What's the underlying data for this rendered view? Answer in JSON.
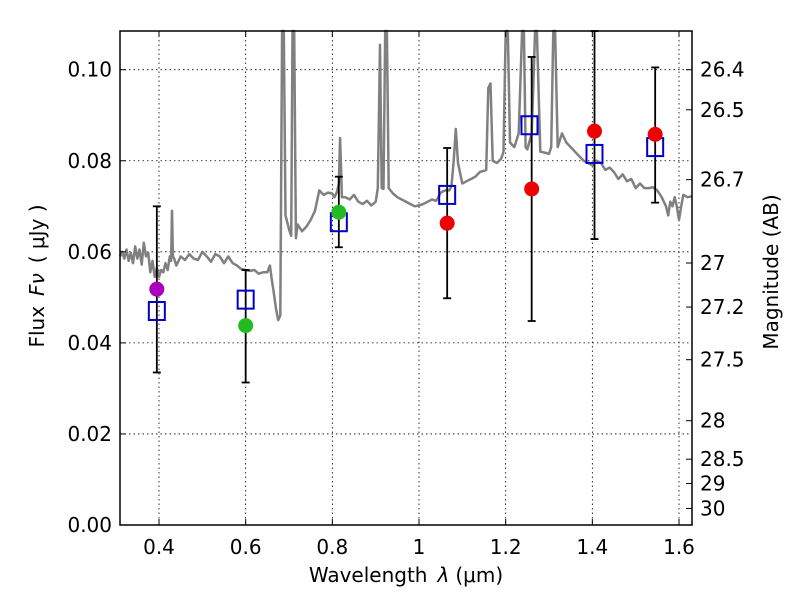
{
  "chart_data": {
    "type": "scatter",
    "xlabel": "Wavelength",
    "xlabel_symbol": "λ",
    "xlabel_unit": "(μm)",
    "ylabel": "Flux",
    "ylabel_symbol": "Fν",
    "ylabel_unit": "( μJy )",
    "y2label": "Magnitude (AB)",
    "xlim": [
      0.31,
      1.63
    ],
    "ylim": [
      0.0,
      0.1085
    ],
    "grid": true,
    "x_ticks": [
      {
        "value": 0.4,
        "label": "0.4"
      },
      {
        "value": 0.6,
        "label": "0.6"
      },
      {
        "value": 0.8,
        "label": "0.8"
      },
      {
        "value": 1.0,
        "label": "1"
      },
      {
        "value": 1.2,
        "label": "1.2"
      },
      {
        "value": 1.4,
        "label": "1.4"
      },
      {
        "value": 1.6,
        "label": "1.6"
      }
    ],
    "y_ticks": [
      {
        "value": 0.0,
        "label": "0.00"
      },
      {
        "value": 0.02,
        "label": "0.02"
      },
      {
        "value": 0.04,
        "label": "0.04"
      },
      {
        "value": 0.06,
        "label": "0.06"
      },
      {
        "value": 0.08,
        "label": "0.08"
      },
      {
        "value": 0.1,
        "label": "0.10"
      }
    ],
    "y2_ticks": [
      {
        "mag": 26.4,
        "label": "26.4"
      },
      {
        "mag": 26.5,
        "label": "26.5"
      },
      {
        "mag": 26.7,
        "label": "26.7"
      },
      {
        "mag": 27.0,
        "label": "27"
      },
      {
        "mag": 27.2,
        "label": "27.2"
      },
      {
        "mag": 27.5,
        "label": "27.5"
      },
      {
        "mag": 28.0,
        "label": "28"
      },
      {
        "mag": 28.5,
        "label": "28.5"
      },
      {
        "mag": 29.0,
        "label": "29"
      },
      {
        "mag": 30.0,
        "label": "30"
      }
    ],
    "observed": [
      {
        "x": 0.395,
        "y": 0.0518,
        "yerr_low": 0.0335,
        "yerr_high": 0.07,
        "color": "#aa00bb"
      },
      {
        "x": 0.6,
        "y": 0.0438,
        "yerr_low": 0.0313,
        "yerr_high": 0.056,
        "color": "#22bb22"
      },
      {
        "x": 0.815,
        "y": 0.0687,
        "yerr_low": 0.061,
        "yerr_high": 0.0765,
        "color": "#22bb22"
      },
      {
        "x": 1.065,
        "y": 0.0663,
        "yerr_low": 0.0498,
        "yerr_high": 0.0828,
        "color": "#ee0000"
      },
      {
        "x": 1.26,
        "y": 0.0738,
        "yerr_low": 0.0448,
        "yerr_high": 0.1028,
        "color": "#ee0000"
      },
      {
        "x": 1.405,
        "y": 0.0865,
        "yerr_low": 0.0628,
        "yerr_high": 0.1085,
        "color": "#ee0000"
      },
      {
        "x": 1.545,
        "y": 0.0858,
        "yerr_low": 0.0708,
        "yerr_high": 0.1005,
        "color": "#ee0000"
      }
    ],
    "model_photometry": [
      {
        "x": 0.395,
        "y": 0.047
      },
      {
        "x": 0.6,
        "y": 0.0495
      },
      {
        "x": 0.815,
        "y": 0.0665
      },
      {
        "x": 1.065,
        "y": 0.0725
      },
      {
        "x": 1.255,
        "y": 0.0878
      },
      {
        "x": 1.405,
        "y": 0.0815
      },
      {
        "x": 1.545,
        "y": 0.083
      }
    ],
    "spectrum": [
      [
        0.31,
        0.059
      ],
      [
        0.315,
        0.06
      ],
      [
        0.32,
        0.0585
      ],
      [
        0.325,
        0.0605
      ],
      [
        0.33,
        0.058
      ],
      [
        0.335,
        0.0598
      ],
      [
        0.34,
        0.0575
      ],
      [
        0.345,
        0.0612
      ],
      [
        0.35,
        0.0585
      ],
      [
        0.355,
        0.0605
      ],
      [
        0.36,
        0.0572
      ],
      [
        0.365,
        0.062
      ],
      [
        0.37,
        0.059
      ],
      [
        0.375,
        0.0598
      ],
      [
        0.38,
        0.0555
      ],
      [
        0.385,
        0.058
      ],
      [
        0.39,
        0.0545
      ],
      [
        0.395,
        0.0565
      ],
      [
        0.4,
        0.0545
      ],
      [
        0.405,
        0.056
      ],
      [
        0.41,
        0.0555
      ],
      [
        0.415,
        0.0575
      ],
      [
        0.42,
        0.056
      ],
      [
        0.425,
        0.059
      ],
      [
        0.428,
        0.058
      ],
      [
        0.43,
        0.069
      ],
      [
        0.432,
        0.059
      ],
      [
        0.435,
        0.0585
      ],
      [
        0.44,
        0.057
      ],
      [
        0.45,
        0.059
      ],
      [
        0.46,
        0.0582
      ],
      [
        0.47,
        0.0595
      ],
      [
        0.48,
        0.0585
      ],
      [
        0.49,
        0.0582
      ],
      [
        0.5,
        0.06
      ],
      [
        0.51,
        0.059
      ],
      [
        0.52,
        0.0578
      ],
      [
        0.53,
        0.0595
      ],
      [
        0.54,
        0.059
      ],
      [
        0.55,
        0.0575
      ],
      [
        0.56,
        0.059
      ],
      [
        0.57,
        0.0575
      ],
      [
        0.58,
        0.057
      ],
      [
        0.59,
        0.0562
      ],
      [
        0.6,
        0.056
      ],
      [
        0.61,
        0.0558
      ],
      [
        0.62,
        0.056
      ],
      [
        0.63,
        0.0552
      ],
      [
        0.64,
        0.0555
      ],
      [
        0.65,
        0.0555
      ],
      [
        0.656,
        0.057
      ],
      [
        0.66,
        0.054
      ],
      [
        0.665,
        0.051
      ],
      [
        0.67,
        0.0475
      ],
      [
        0.675,
        0.045
      ],
      [
        0.68,
        0.046
      ],
      [
        0.684,
        0.1085
      ],
      [
        0.688,
        0.1085
      ],
      [
        0.692,
        0.068
      ],
      [
        0.7,
        0.065
      ],
      [
        0.705,
        0.0635
      ],
      [
        0.708,
        0.1085
      ],
      [
        0.712,
        0.1085
      ],
      [
        0.716,
        0.063
      ],
      [
        0.72,
        0.066
      ],
      [
        0.73,
        0.0645
      ],
      [
        0.74,
        0.0655
      ],
      [
        0.75,
        0.067
      ],
      [
        0.76,
        0.069
      ],
      [
        0.77,
        0.0735
      ],
      [
        0.78,
        0.0725
      ],
      [
        0.79,
        0.073
      ],
      [
        0.8,
        0.0728
      ],
      [
        0.805,
        0.072
      ],
      [
        0.81,
        0.073
      ],
      [
        0.815,
        0.075
      ],
      [
        0.818,
        0.085
      ],
      [
        0.822,
        0.072
      ],
      [
        0.83,
        0.072
      ],
      [
        0.84,
        0.0715
      ],
      [
        0.85,
        0.0725
      ],
      [
        0.86,
        0.071
      ],
      [
        0.87,
        0.0705
      ],
      [
        0.88,
        0.0712
      ],
      [
        0.89,
        0.0702
      ],
      [
        0.9,
        0.071
      ],
      [
        0.905,
        0.074
      ],
      [
        0.91,
        0.1055
      ],
      [
        0.914,
        0.074
      ],
      [
        0.918,
        0.0738
      ],
      [
        0.922,
        0.1085
      ],
      [
        0.926,
        0.1085
      ],
      [
        0.93,
        0.074
      ],
      [
        0.94,
        0.0728
      ],
      [
        0.95,
        0.072
      ],
      [
        0.96,
        0.0715
      ],
      [
        0.97,
        0.071
      ],
      [
        0.98,
        0.0705
      ],
      [
        0.99,
        0.07
      ],
      [
        1.0,
        0.0702
      ],
      [
        1.01,
        0.0705
      ],
      [
        1.02,
        0.071
      ],
      [
        1.03,
        0.0715
      ],
      [
        1.04,
        0.0712
      ],
      [
        1.05,
        0.073
      ],
      [
        1.06,
        0.0735
      ],
      [
        1.07,
        0.0735
      ],
      [
        1.075,
        0.0745
      ],
      [
        1.08,
        0.08
      ],
      [
        1.085,
        0.087
      ],
      [
        1.09,
        0.0795
      ],
      [
        1.1,
        0.075
      ],
      [
        1.11,
        0.0755
      ],
      [
        1.12,
        0.076
      ],
      [
        1.13,
        0.0765
      ],
      [
        1.14,
        0.0775
      ],
      [
        1.15,
        0.0778
      ],
      [
        1.155,
        0.078
      ],
      [
        1.16,
        0.096
      ],
      [
        1.165,
        0.097
      ],
      [
        1.17,
        0.08
      ],
      [
        1.18,
        0.0795
      ],
      [
        1.19,
        0.0805
      ],
      [
        1.195,
        0.082
      ],
      [
        1.2,
        0.1085
      ],
      [
        1.205,
        0.1085
      ],
      [
        1.21,
        0.084
      ],
      [
        1.22,
        0.083
      ],
      [
        1.23,
        0.086
      ],
      [
        1.238,
        0.1085
      ],
      [
        1.242,
        0.1085
      ],
      [
        1.246,
        0.083
      ],
      [
        1.25,
        0.0825
      ],
      [
        1.26,
        0.086
      ],
      [
        1.268,
        0.1085
      ],
      [
        1.272,
        0.1085
      ],
      [
        1.28,
        0.082
      ],
      [
        1.29,
        0.0818
      ],
      [
        1.3,
        0.0815
      ],
      [
        1.305,
        0.083
      ],
      [
        1.31,
        0.1085
      ],
      [
        1.314,
        0.1085
      ],
      [
        1.32,
        0.083
      ],
      [
        1.33,
        0.086
      ],
      [
        1.34,
        0.084
      ],
      [
        1.35,
        0.083
      ],
      [
        1.36,
        0.082
      ],
      [
        1.37,
        0.081
      ],
      [
        1.38,
        0.08
      ],
      [
        1.39,
        0.0795
      ],
      [
        1.4,
        0.079
      ],
      [
        1.41,
        0.08
      ],
      [
        1.42,
        0.0795
      ],
      [
        1.43,
        0.078
      ],
      [
        1.44,
        0.0785
      ],
      [
        1.45,
        0.0775
      ],
      [
        1.46,
        0.076
      ],
      [
        1.47,
        0.077
      ],
      [
        1.48,
        0.0755
      ],
      [
        1.49,
        0.076
      ],
      [
        1.5,
        0.074
      ],
      [
        1.51,
        0.075
      ],
      [
        1.52,
        0.074
      ],
      [
        1.53,
        0.074
      ],
      [
        1.54,
        0.0742
      ],
      [
        1.55,
        0.0735
      ],
      [
        1.56,
        0.072
      ],
      [
        1.57,
        0.07
      ],
      [
        1.575,
        0.068
      ],
      [
        1.58,
        0.071
      ],
      [
        1.585,
        0.07
      ],
      [
        1.59,
        0.072
      ],
      [
        1.595,
        0.07
      ],
      [
        1.6,
        0.067
      ],
      [
        1.605,
        0.07
      ],
      [
        1.61,
        0.0725
      ],
      [
        1.62,
        0.072
      ],
      [
        1.63,
        0.0722
      ]
    ]
  }
}
